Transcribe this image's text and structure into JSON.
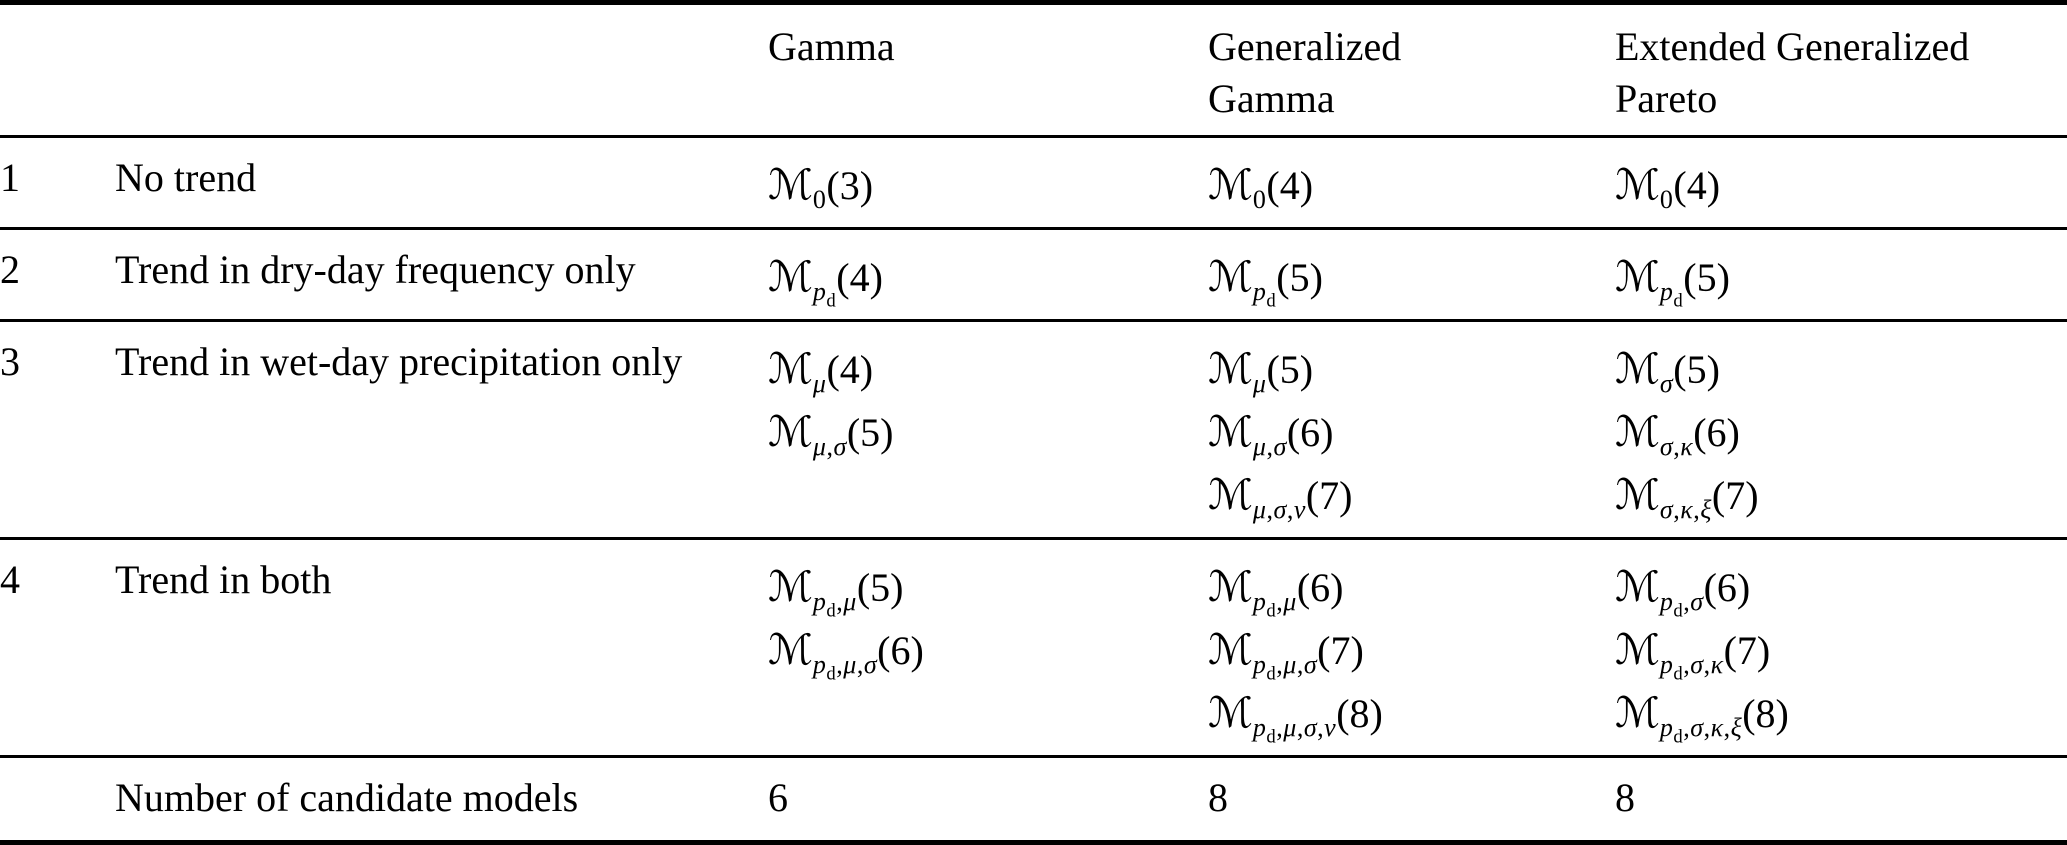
{
  "table": {
    "model_symbol": "ℳ",
    "colors": {
      "background": "#ffffff",
      "text": "#000000",
      "rule": "#000000"
    },
    "columns": [
      {
        "label": ""
      },
      {
        "label": ""
      },
      {
        "label": "Gamma"
      },
      {
        "label": "Generalized\nGamma"
      },
      {
        "label": "Extended Generalized\nPareto"
      }
    ],
    "rows": [
      {
        "num": "1",
        "label": "No trend",
        "cells": [
          [
            {
              "sub": "0",
              "n": "3"
            }
          ],
          [
            {
              "sub": "0",
              "n": "4"
            }
          ],
          [
            {
              "sub": "0",
              "n": "4"
            }
          ]
        ]
      },
      {
        "num": "2",
        "label": "Trend in dry-day frequency only",
        "cells": [
          [
            {
              "sub": "p_d",
              "n": "4"
            }
          ],
          [
            {
              "sub": "p_d",
              "n": "5"
            }
          ],
          [
            {
              "sub": "p_d",
              "n": "5"
            }
          ]
        ]
      },
      {
        "num": "3",
        "label": "Trend in wet-day precipitation only",
        "cells": [
          [
            {
              "sub": "μ",
              "n": "4"
            },
            {
              "sub": "μ,σ",
              "n": "5"
            }
          ],
          [
            {
              "sub": "μ",
              "n": "5"
            },
            {
              "sub": "μ,σ",
              "n": "6"
            },
            {
              "sub": "μ,σ,ν",
              "n": "7"
            }
          ],
          [
            {
              "sub": "σ",
              "n": "5"
            },
            {
              "sub": "σ,κ",
              "n": "6"
            },
            {
              "sub": "σ,κ,ξ",
              "n": "7"
            }
          ]
        ]
      },
      {
        "num": "4",
        "label": "Trend in both",
        "cells": [
          [
            {
              "sub": "p_d,μ",
              "n": "5"
            },
            {
              "sub": "p_d,μ,σ",
              "n": "6"
            }
          ],
          [
            {
              "sub": "p_d,μ",
              "n": "6"
            },
            {
              "sub": "p_d,μ,σ",
              "n": "7"
            },
            {
              "sub": "p_d,μ,σ,ν",
              "n": "8"
            }
          ],
          [
            {
              "sub": "p_d,σ",
              "n": "6"
            },
            {
              "sub": "p_d,σ,κ",
              "n": "7"
            },
            {
              "sub": "p_d,σ,κ,ξ",
              "n": "8"
            }
          ]
        ]
      }
    ],
    "footer": {
      "label": "Number of candidate models",
      "values": [
        "6",
        "8",
        "8"
      ]
    }
  }
}
